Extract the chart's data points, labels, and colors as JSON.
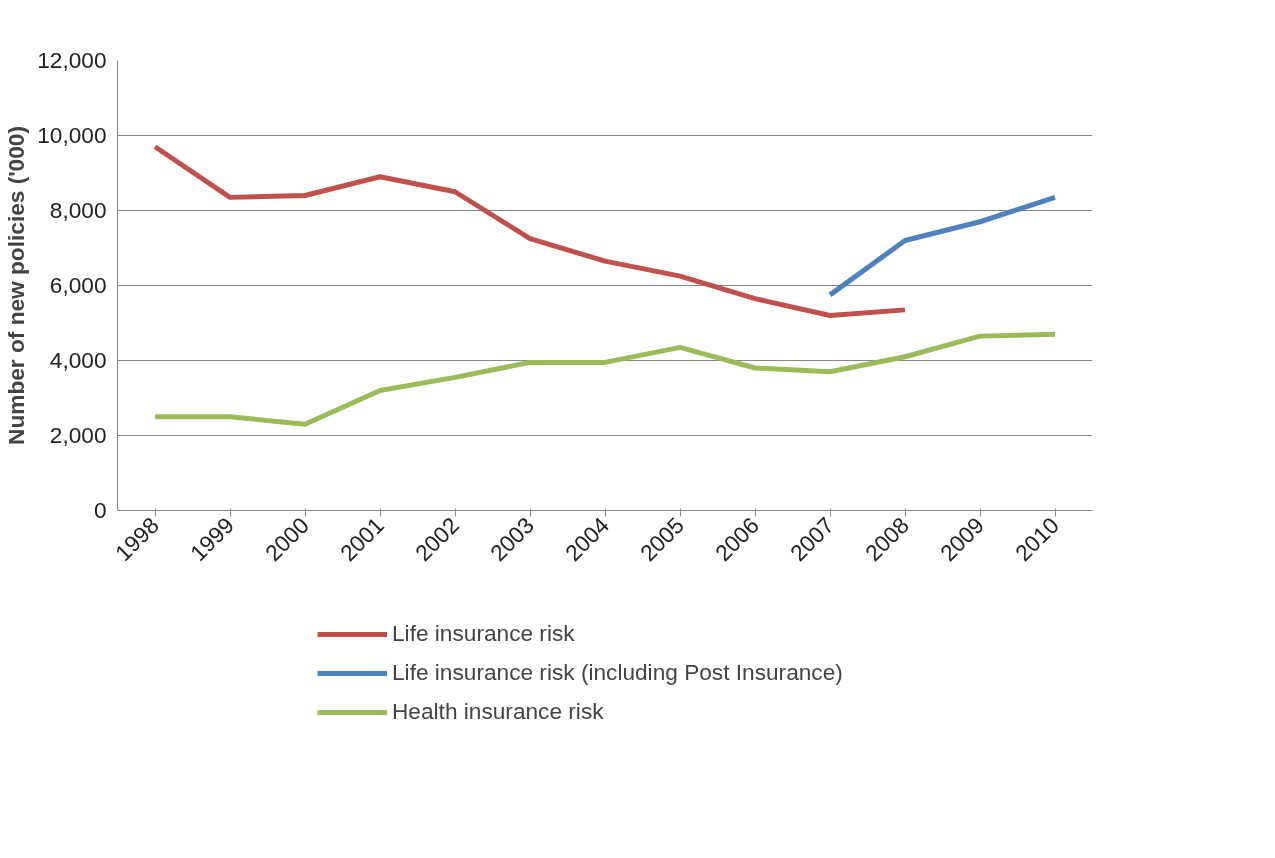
{
  "chart_data": {
    "type": "line",
    "ylabel": "Number of new policies ('000)",
    "categories": [
      "1998",
      "1999",
      "2000",
      "2001",
      "2002",
      "2003",
      "2004",
      "2005",
      "2006",
      "2007",
      "2008",
      "2009",
      "2010"
    ],
    "series": [
      {
        "name": "Life insurance risk",
        "color": "#c0504d",
        "values": [
          9700,
          8350,
          8400,
          8900,
          8500,
          7250,
          6650,
          6250,
          5650,
          5200,
          5350,
          null,
          null
        ]
      },
      {
        "name": "Life insurance risk (including Post Insurance)",
        "color": "#4f81bd",
        "values": [
          null,
          null,
          null,
          null,
          null,
          null,
          null,
          null,
          null,
          5750,
          7200,
          7700,
          8350
        ]
      },
      {
        "name": "Health insurance risk",
        "color": "#9bbb59",
        "values": [
          2500,
          2500,
          2300,
          3200,
          3550,
          3950,
          3950,
          4350,
          3800,
          3700,
          4100,
          4650,
          4700
        ]
      }
    ],
    "ylim": [
      0,
      12000
    ],
    "yticks": [
      {
        "value": 0,
        "label": "0"
      },
      {
        "value": 2000,
        "label": "2,000"
      },
      {
        "value": 4000,
        "label": "4,000"
      },
      {
        "value": 6000,
        "label": "6,000"
      },
      {
        "value": 8000,
        "label": "8,000"
      },
      {
        "value": 10000,
        "label": "10,000"
      },
      {
        "value": 12000,
        "label": "12,000"
      }
    ],
    "grid": "y",
    "legend": "bottom",
    "marker": "none",
    "line_style": "solid"
  }
}
